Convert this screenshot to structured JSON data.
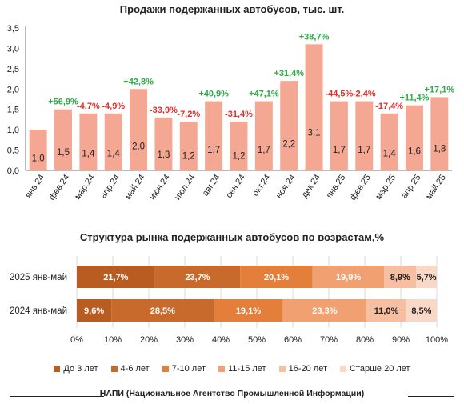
{
  "charts": [
    {
      "type": "bar",
      "title": "Продажи подержанных автобусов, тыс. шт.",
      "categories": [
        "янв.24",
        "фев.24",
        "мар.24",
        "апр.24",
        "май.24",
        "июн.24",
        "июл.24",
        "авг.24",
        "сен.24",
        "окт.24",
        "ноя.24",
        "дек.24",
        "янв.25",
        "фев.25",
        "мар.25",
        "апр.25",
        "май.25"
      ],
      "values": [
        1.0,
        1.5,
        1.4,
        1.4,
        2.0,
        1.3,
        1.2,
        1.7,
        1.2,
        1.7,
        2.2,
        3.1,
        1.7,
        1.7,
        1.4,
        1.6,
        1.8
      ],
      "value_labels": [
        "1,0",
        "1,5",
        "1,4",
        "1,4",
        "2,0",
        "1,3",
        "1,2",
        "1,7",
        "1,2",
        "1,7",
        "2,2",
        "3,1",
        "1,7",
        "1,7",
        "1,4",
        "1,6",
        "1,8"
      ],
      "change_labels": [
        "",
        "+56,9%",
        "-4,7%",
        "-4,9%",
        "+42,8%",
        "-33,9%",
        "-7,2%",
        "+40,9%",
        "-31,4%",
        "+47,1%",
        "+31,4%",
        "+38,7%",
        "-44,5%",
        "-2,4%",
        "-17,4%",
        "+11,4%",
        "+17,1%"
      ],
      "ylim": [
        0,
        3.5
      ],
      "yticks": [
        "0,0",
        "0,5",
        "1,0",
        "1,5",
        "2,0",
        "2,5",
        "3,0",
        "3,5"
      ],
      "bar_color": "#f4a792",
      "positive_color": "#2eaa44",
      "negative_color": "#e0302a"
    },
    {
      "type": "bar",
      "orientation": "horizontal",
      "stacked": true,
      "title": "Структура рынка подержанных автобусов по возрастам,%",
      "categories": [
        "2025 янв-май",
        "2024 янв-май"
      ],
      "series": [
        {
          "name": "До 3 лет",
          "color": "#b85c22",
          "values": [
            21.7,
            9.6
          ],
          "labels": [
            "21,7%",
            "9,6%"
          ]
        },
        {
          "name": "4-6 лет",
          "color": "#c86a2c",
          "values": [
            23.7,
            28.5
          ],
          "labels": [
            "23,7%",
            "28,5%"
          ]
        },
        {
          "name": "7-10 лет",
          "color": "#e37f3b",
          "values": [
            20.1,
            19.1
          ],
          "labels": [
            "20,1%",
            "19,1%"
          ]
        },
        {
          "name": "11-15 лет",
          "color": "#f0a071",
          "values": [
            19.9,
            23.3
          ],
          "labels": [
            "19,9%",
            "23,3%"
          ]
        },
        {
          "name": "16-20 лет",
          "color": "#f6bfa2",
          "values": [
            8.9,
            11.0
          ],
          "labels": [
            "8,9%",
            "11,0%"
          ]
        },
        {
          "name": "Старше 20 лет",
          "color": "#fad8c8",
          "values": [
            5.7,
            8.5
          ],
          "labels": [
            "5,7%",
            "8,5%"
          ]
        }
      ],
      "xlim": [
        0,
        100
      ],
      "xticks": [
        "0%",
        "10%",
        "20%",
        "30%",
        "40%",
        "50%",
        "60%",
        "70%",
        "80%",
        "90%",
        "100%"
      ],
      "legend_position": "bottom"
    }
  ],
  "footer": "НАПИ (Национальное Агентство Промышленной Информации)"
}
